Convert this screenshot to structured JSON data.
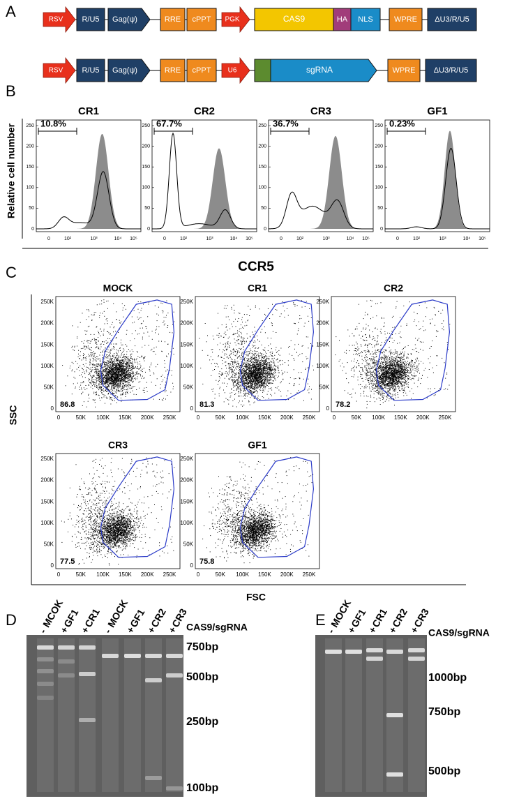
{
  "panel_a": {
    "label": "A",
    "rows": [
      [
        "RSV",
        "R/U5",
        "Gag(ψ)",
        "RRE",
        "cPPT",
        "PGK",
        "CAS9",
        "HA",
        "NLS",
        "WPRE",
        "ΔU3/R/U5"
      ],
      [
        "RSV",
        "R/U5",
        "Gag(ψ)",
        "RRE",
        "cPPT",
        "U6",
        "sgRNA",
        "WPRE",
        "ΔU3/R/U5"
      ]
    ]
  },
  "panel_b": {
    "label": "B",
    "y_label": "Relative cell number",
    "yticks": [
      "0",
      "50",
      "100",
      "150",
      "200",
      "250"
    ],
    "xticks": [
      "0",
      "10²",
      "10³",
      "10⁴",
      "10⁵"
    ],
    "plots": [
      {
        "title": "CR1",
        "gate": "10.8%"
      },
      {
        "title": "CR2",
        "gate": "67.7%"
      },
      {
        "title": "CR3",
        "gate": "36.7%"
      },
      {
        "title": "GF1",
        "gate": "0.23%"
      }
    ]
  },
  "panel_c": {
    "label": "C",
    "title": "CCR5",
    "x_label": "FSC",
    "y_label": "SSC",
    "ticks": [
      "0",
      "50K",
      "100K",
      "150K",
      "200K",
      "250K"
    ],
    "plots": [
      {
        "title": "MOCK",
        "value": "86.8"
      },
      {
        "title": "CR1",
        "value": "81.3"
      },
      {
        "title": "CR2",
        "value": "78.2"
      },
      {
        "title": "CR3",
        "value": "77.5"
      },
      {
        "title": "GF1",
        "value": "75.8"
      }
    ]
  },
  "panel_d": {
    "label": "D",
    "treatment": "CAS9/sgRNA",
    "lanes": [
      {
        "sign": "-",
        "name": "MCOK"
      },
      {
        "sign": "+",
        "name": "GF1"
      },
      {
        "sign": "+",
        "name": "CR1"
      },
      {
        "sign": "-",
        "name": "MOCK"
      },
      {
        "sign": "+",
        "name": "GF1"
      },
      {
        "sign": "+",
        "name": "CR2"
      },
      {
        "sign": "+",
        "name": "CR3"
      }
    ],
    "markers": [
      "750bp",
      "500bp",
      "250bp",
      "100bp"
    ]
  },
  "panel_e": {
    "label": "E",
    "treatment": "CAS9/sgRNA",
    "lanes": [
      {
        "sign": "-",
        "name": "MOCK"
      },
      {
        "sign": "+",
        "name": "GF1"
      },
      {
        "sign": "+",
        "name": "CR1"
      },
      {
        "sign": "+",
        "name": "CR2"
      },
      {
        "sign": "+",
        "name": "CR3"
      }
    ],
    "markers": [
      "1000bp",
      "750bp",
      "500bp"
    ]
  }
}
